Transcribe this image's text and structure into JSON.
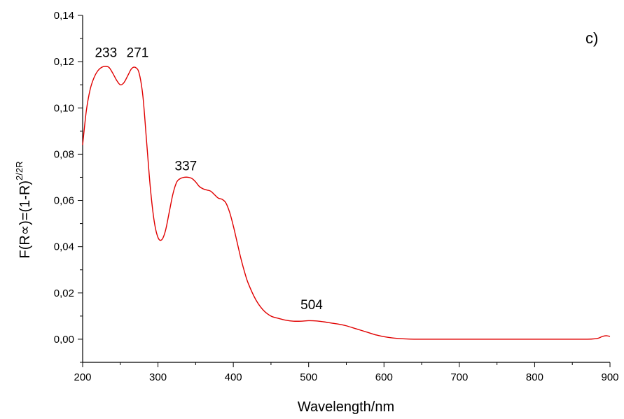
{
  "chart_data": {
    "type": "line",
    "panel_label": "c)",
    "xlabel": "Wavelength/nm",
    "ylabel": "F(R∝)=(1-R)",
    "ylabel_superscript": "2/2R",
    "xlim": [
      200,
      900
    ],
    "ylim": [
      -0.01,
      0.14
    ],
    "x_ticks": [
      200,
      300,
      400,
      500,
      600,
      700,
      800,
      900
    ],
    "x_tick_labels": [
      "200",
      "300",
      "400",
      "500",
      "600",
      "700",
      "800",
      "900"
    ],
    "y_ticks": [
      0.0,
      0.02,
      0.04,
      0.06,
      0.08,
      0.1,
      0.12,
      0.14
    ],
    "y_tick_labels": [
      "0,00",
      "0,02",
      "0,04",
      "0,06",
      "0,08",
      "0,10",
      "0,12",
      "0,14"
    ],
    "grid": false,
    "series_color": "#e00000",
    "series": [
      {
        "x": [
          200,
          205,
          210,
          215,
          220,
          225,
          230,
          235,
          240,
          245,
          250,
          255,
          260,
          265,
          270,
          275,
          280,
          285,
          290,
          295,
          300,
          305,
          310,
          315,
          320,
          325,
          330,
          335,
          340,
          345,
          350,
          355,
          360,
          365,
          370,
          375,
          380,
          385,
          390,
          395,
          400,
          405,
          410,
          415,
          420,
          430,
          440,
          450,
          460,
          470,
          480,
          490,
          500,
          510,
          520,
          530,
          540,
          550,
          560,
          570,
          580,
          590,
          600,
          610,
          620,
          630,
          640,
          650,
          700,
          750,
          800,
          850,
          870,
          880,
          885,
          890,
          895,
          900
        ],
        "y": [
          0.084,
          0.099,
          0.108,
          0.113,
          0.116,
          0.1175,
          0.118,
          0.1175,
          0.115,
          0.112,
          0.11,
          0.111,
          0.114,
          0.117,
          0.1175,
          0.115,
          0.105,
          0.085,
          0.065,
          0.051,
          0.044,
          0.043,
          0.047,
          0.055,
          0.063,
          0.068,
          0.0695,
          0.07,
          0.07,
          0.0695,
          0.068,
          0.066,
          0.065,
          0.0645,
          0.064,
          0.0625,
          0.061,
          0.0605,
          0.059,
          0.055,
          0.049,
          0.042,
          0.035,
          0.029,
          0.024,
          0.017,
          0.0125,
          0.01,
          0.009,
          0.0082,
          0.0078,
          0.0078,
          0.008,
          0.0079,
          0.0075,
          0.007,
          0.0065,
          0.0058,
          0.0048,
          0.0038,
          0.0028,
          0.0018,
          0.0011,
          0.0006,
          0.0003,
          0.0001,
          0.0,
          0.0,
          0.0,
          0.0,
          0.0,
          0.0,
          0.0,
          0.0002,
          0.0005,
          0.0012,
          0.0015,
          0.0012
        ]
      }
    ],
    "annotations": [
      {
        "text": "233",
        "x": 231,
        "y": 0.122
      },
      {
        "text": "271",
        "x": 273,
        "y": 0.122
      },
      {
        "text": "337",
        "x": 337,
        "y": 0.073
      },
      {
        "text": "504",
        "x": 504,
        "y": 0.013
      }
    ]
  }
}
